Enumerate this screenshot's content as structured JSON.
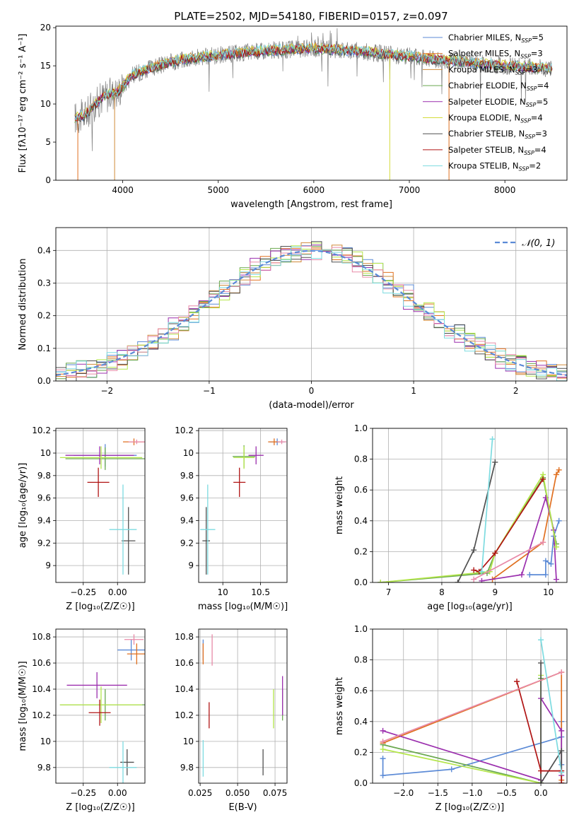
{
  "figure_title": "PLATE=2502, MJD=54180, FIBERID=0157, z=0.097",
  "colors": {
    "chabrier_miles": "#5b8ad6",
    "salpeter_miles": "#e07020",
    "kroupa_miles": "#d08a3a",
    "chabrier_elodie": "#6aa84f",
    "salpeter_elodie": "#9b2fae",
    "kroupa_elodie": "#d4dc3a",
    "chabrier_stelib": "#505050",
    "salpeter_stelib": "#b01414",
    "kroupa_stelib": "#7ddbe0",
    "salmon": "#e88aa8",
    "lime": "#b4e64a",
    "data": "#808080",
    "normal": "#5b8ad6"
  },
  "chart_data": [
    {
      "id": "spectrum",
      "type": "line",
      "title": "PLATE=2502, MJD=54180, FIBERID=0157, z=0.097",
      "xlabel": "wavelength [Angstrom, rest frame]",
      "ylabel": "Flux [fλ10⁻¹⁷ erg cm⁻² s⁻¹ A⁻¹]",
      "xlim": [
        3300,
        8650
      ],
      "ylim": [
        0,
        20.2
      ],
      "xticks": [
        4000,
        5000,
        6000,
        7000,
        8000
      ],
      "yticks": [
        0,
        5,
        10,
        15,
        20
      ],
      "grid": false,
      "legend_position": "top-right",
      "continuum": {
        "x": [
          3500,
          3600,
          3700,
          3800,
          3950,
          4100,
          4300,
          4600,
          5000,
          5500,
          6000,
          6500,
          7000,
          7500,
          8000,
          8500
        ],
        "y": [
          8.2,
          8.5,
          9.8,
          11.0,
          11.6,
          13.8,
          14.7,
          15.8,
          16.4,
          17.0,
          17.3,
          16.9,
          16.2,
          15.6,
          15.0,
          14.6
        ]
      },
      "series": [
        {
          "name": "Chabrier MILES, N_SSP=5",
          "color_key": "chabrier_miles"
        },
        {
          "name": "Salpeter MILES, N_SSP=3",
          "color_key": "salpeter_miles"
        },
        {
          "name": "Kroupa MILES, N_SSP=3",
          "color_key": "kroupa_miles"
        },
        {
          "name": "Chabrier ELODIE, N_SSP=4",
          "color_key": "chabrier_elodie"
        },
        {
          "name": "Salpeter ELODIE, N_SSP=5",
          "color_key": "salpeter_elodie"
        },
        {
          "name": "Kroupa ELODIE, N_SSP=4",
          "color_key": "kroupa_elodie"
        },
        {
          "name": "Chabrier STELIB, N_SSP=3",
          "color_key": "chabrier_stelib"
        },
        {
          "name": "Salpeter STELIB, N_SSP=4",
          "color_key": "salpeter_stelib"
        },
        {
          "name": "Kroupa STELIB, N_SSP=2",
          "color_key": "kroupa_stelib"
        }
      ]
    },
    {
      "id": "residuals",
      "type": "step",
      "xlabel": "(data-model)/error",
      "ylabel": "Normed distribution",
      "xlim": [
        -2.5,
        2.5
      ],
      "ylim": [
        0,
        0.47
      ],
      "xticks": [
        -2,
        -1,
        0,
        1,
        2
      ],
      "yticks": [
        0.0,
        0.1,
        0.2,
        0.3,
        0.4
      ],
      "grid": true,
      "legend_position": "top-right",
      "legend": "𝒩(0, 1)",
      "bin_width": 0.1,
      "series_colors": [
        "chabrier_miles",
        "salpeter_miles",
        "kroupa_miles",
        "chabrier_elodie",
        "salpeter_elodie",
        "lime",
        "chabrier_stelib",
        "salmon",
        "kroupa_stelib"
      ]
    },
    {
      "id": "age_vs_Z",
      "type": "errorbar",
      "xlabel": "Z [log₁₀(Z/Z☉)]",
      "ylabel": "age  [log₁₀(age/yr)]",
      "xlim": [
        -0.45,
        0.2
      ],
      "ylim": [
        8.85,
        10.22
      ],
      "xticks": [
        -0.25,
        0.0
      ],
      "xticklabels": [
        "−0.25",
        "0.00"
      ],
      "yticks": [
        9.0,
        9.2,
        9.4,
        9.6,
        9.8,
        10.0,
        10.2
      ],
      "grid": true,
      "points": [
        {
          "x": -0.09,
          "xerr": 0.23,
          "y": 9.98,
          "yerr": 0.1,
          "c": "chabrier_miles"
        },
        {
          "x": 0.12,
          "xerr": 0.08,
          "y": 10.1,
          "yerr": 0.03,
          "c": "salpeter_miles"
        },
        {
          "x": -0.09,
          "xerr": 0.29,
          "y": 9.95,
          "yerr": 0.1,
          "c": "chabrier_elodie"
        },
        {
          "x": -0.13,
          "xerr": 0.25,
          "y": 9.98,
          "yerr": 0.08,
          "c": "salpeter_elodie"
        },
        {
          "x": -0.12,
          "xerr": 0.3,
          "y": 9.96,
          "yerr": 0.1,
          "c": "lime"
        },
        {
          "x": 0.08,
          "xerr": 0.05,
          "y": 9.22,
          "yerr": 0.3,
          "c": "chabrier_stelib"
        },
        {
          "x": -0.14,
          "xerr": 0.08,
          "y": 9.74,
          "yerr": 0.13,
          "c": "salpeter_stelib"
        },
        {
          "x": 0.14,
          "xerr": 0.06,
          "y": 10.1,
          "yerr": 0.02,
          "c": "salmon"
        },
        {
          "x": 0.04,
          "xerr": 0.1,
          "y": 9.32,
          "yerr": 0.4,
          "c": "kroupa_stelib"
        }
      ]
    },
    {
      "id": "age_vs_mass",
      "type": "errorbar",
      "xlabel": "mass [log₁₀(M/M☉)]",
      "ylabel": "",
      "xlim": [
        9.68,
        10.85
      ],
      "ylim": [
        8.85,
        10.22
      ],
      "xticks": [
        10.0,
        10.5
      ],
      "yticks": [
        9.0,
        9.2,
        9.4,
        9.6,
        9.8,
        10.0,
        10.2
      ],
      "grid": true,
      "points": [
        {
          "x": 10.72,
          "xerr": 0.1,
          "y": 10.1,
          "yerr": 0.03,
          "c": "chabrier_miles"
        },
        {
          "x": 10.68,
          "xerr": 0.08,
          "y": 10.1,
          "yerr": 0.03,
          "c": "salpeter_miles"
        },
        {
          "x": 10.28,
          "xerr": 0.15,
          "y": 9.97,
          "yerr": 0.1,
          "c": "chabrier_elodie"
        },
        {
          "x": 10.44,
          "xerr": 0.1,
          "y": 9.98,
          "yerr": 0.08,
          "c": "salpeter_elodie"
        },
        {
          "x": 10.28,
          "xerr": 0.14,
          "y": 9.96,
          "yerr": 0.1,
          "c": "lime"
        },
        {
          "x": 9.78,
          "xerr": 0.05,
          "y": 9.22,
          "yerr": 0.3,
          "c": "chabrier_stelib"
        },
        {
          "x": 10.22,
          "xerr": 0.08,
          "y": 9.74,
          "yerr": 0.13,
          "c": "salpeter_stelib"
        },
        {
          "x": 10.78,
          "xerr": 0.06,
          "y": 10.1,
          "yerr": 0.02,
          "c": "salmon"
        },
        {
          "x": 9.8,
          "xerr": 0.1,
          "y": 9.32,
          "yerr": 0.4,
          "c": "kroupa_stelib"
        }
      ]
    },
    {
      "id": "weight_vs_age",
      "type": "line",
      "xlabel": "age  [log₁₀(age/yr)]",
      "ylabel": "mass weight",
      "xlim": [
        6.7,
        10.35
      ],
      "ylim": [
        0,
        1.0
      ],
      "xticks": [
        7,
        8,
        9,
        10
      ],
      "yticks": [
        0.0,
        0.2,
        0.4,
        0.6,
        0.8,
        1.0
      ],
      "grid": true,
      "series": [
        {
          "c": "chabrier_miles",
          "x": [
            9.65,
            9.95,
            9.95,
            10.05,
            10.1,
            10.2
          ],
          "y": [
            0.05,
            0.05,
            0.14,
            0.12,
            0.3,
            0.4
          ]
        },
        {
          "c": "salpeter_miles",
          "x": [
            8.95,
            9.9,
            10.15,
            10.2
          ],
          "y": [
            0.02,
            0.26,
            0.7,
            0.73
          ]
        },
        {
          "c": "chabrier_elodie",
          "x": [
            6.85,
            8.85,
            9.0,
            9.9,
            10.15
          ],
          "y": [
            0.0,
            0.06,
            0.19,
            0.68,
            0.25
          ]
        },
        {
          "c": "salpeter_elodie",
          "x": [
            8.75,
            9.5,
            9.95,
            10.1,
            10.15
          ],
          "y": [
            0.01,
            0.05,
            0.55,
            0.34,
            0.02
          ]
        },
        {
          "c": "lime",
          "x": [
            6.85,
            8.9,
            9.0,
            9.9,
            10.15
          ],
          "y": [
            0.0,
            0.07,
            0.19,
            0.7,
            0.23
          ]
        },
        {
          "c": "chabrier_stelib",
          "x": [
            8.3,
            8.6,
            9.0
          ],
          "y": [
            0.0,
            0.21,
            0.78
          ]
        },
        {
          "c": "salpeter_stelib",
          "x": [
            8.6,
            8.7,
            9.0,
            9.9
          ],
          "y": [
            0.08,
            0.07,
            0.19,
            0.67
          ]
        },
        {
          "c": "salmon",
          "x": [
            8.6,
            9.9
          ],
          "y": [
            0.02,
            0.26
          ]
        },
        {
          "c": "kroupa_stelib",
          "x": [
            8.75,
            8.95
          ],
          "y": [
            0.07,
            0.93
          ]
        }
      ]
    },
    {
      "id": "mass_vs_Z",
      "type": "errorbar",
      "xlabel": "Z [log₁₀(Z/Z☉)]",
      "ylabel": "mass [log₁₀(M/M☉)]",
      "xlim": [
        -0.45,
        0.2
      ],
      "ylim": [
        9.68,
        10.86
      ],
      "xticks": [
        -0.25,
        0.0
      ],
      "xticklabels": [
        "−0.25",
        "0.00"
      ],
      "yticks": [
        9.8,
        10.0,
        10.2,
        10.4,
        10.6,
        10.8
      ],
      "grid": true,
      "points": [
        {
          "x": 0.1,
          "xerr": 0.1,
          "y": 10.7,
          "yerr": 0.08,
          "c": "chabrier_miles"
        },
        {
          "x": 0.14,
          "xerr": 0.07,
          "y": 10.67,
          "yerr": 0.08,
          "c": "salpeter_miles"
        },
        {
          "x": -0.09,
          "xerr": 0.33,
          "y": 10.28,
          "yerr": 0.12,
          "c": "chabrier_elodie"
        },
        {
          "x": -0.15,
          "xerr": 0.22,
          "y": 10.43,
          "yerr": 0.1,
          "c": "salpeter_elodie"
        },
        {
          "x": -0.12,
          "xerr": 0.3,
          "y": 10.28,
          "yerr": 0.14,
          "c": "lime"
        },
        {
          "x": 0.07,
          "xerr": 0.05,
          "y": 9.84,
          "yerr": 0.1,
          "c": "chabrier_stelib"
        },
        {
          "x": -0.13,
          "xerr": 0.08,
          "y": 10.22,
          "yerr": 0.1,
          "c": "salpeter_stelib"
        },
        {
          "x": 0.12,
          "xerr": 0.07,
          "y": 10.78,
          "yerr": 0.04,
          "c": "salmon"
        },
        {
          "x": 0.04,
          "xerr": 0.1,
          "y": 9.8,
          "yerr": 0.2,
          "c": "kroupa_stelib"
        }
      ]
    },
    {
      "id": "mass_vs_ebv",
      "type": "errorbar",
      "xlabel": "E(B-V)",
      "ylabel": "",
      "xlim": [
        0.024,
        0.083
      ],
      "ylim": [
        9.68,
        10.86
      ],
      "xticks": [
        0.025,
        0.05,
        0.075
      ],
      "xticklabels": [
        "0.025",
        "0.050",
        "0.075"
      ],
      "yticks": [
        9.8,
        10.0,
        10.2,
        10.4,
        10.6,
        10.8
      ],
      "grid": true,
      "points": [
        {
          "x": 0.027,
          "y": 10.7,
          "yerr": 0.08,
          "c": "chabrier_miles"
        },
        {
          "x": 0.027,
          "y": 10.67,
          "yerr": 0.08,
          "c": "salpeter_miles"
        },
        {
          "x": 0.08,
          "y": 10.28,
          "yerr": 0.12,
          "c": "chabrier_elodie"
        },
        {
          "x": 0.08,
          "y": 10.35,
          "yerr": 0.15,
          "c": "salpeter_elodie"
        },
        {
          "x": 0.074,
          "y": 10.25,
          "yerr": 0.15,
          "c": "lime"
        },
        {
          "x": 0.067,
          "y": 9.84,
          "yerr": 0.1,
          "c": "chabrier_stelib"
        },
        {
          "x": 0.031,
          "y": 10.2,
          "yerr": 0.1,
          "c": "salpeter_stelib"
        },
        {
          "x": 0.033,
          "y": 10.7,
          "yerr": 0.12,
          "c": "salmon"
        },
        {
          "x": 0.027,
          "y": 9.87,
          "yerr": 0.14,
          "c": "kroupa_stelib"
        }
      ]
    },
    {
      "id": "weight_vs_Z",
      "type": "line",
      "xlabel": "Z [log₁₀(Z/Z☉)]",
      "ylabel": "mass weight",
      "xlim": [
        -2.45,
        0.38
      ],
      "ylim": [
        0,
        1.0
      ],
      "xticks": [
        -2.0,
        -1.5,
        -1.0,
        -0.5,
        0.0
      ],
      "xticklabels": [
        "−2.0",
        "−1.5",
        "−1.0",
        "−0.5",
        "0.0"
      ],
      "yticks": [
        0.0,
        0.2,
        0.4,
        0.6,
        0.8,
        1.0
      ],
      "grid": true,
      "series": [
        {
          "c": "chabrier_miles",
          "x": [
            -2.3,
            -2.3,
            -1.3,
            0.3,
            0.3,
            0.3
          ],
          "y": [
            0.16,
            0.05,
            0.09,
            0.3,
            0.4,
            0.12
          ]
        },
        {
          "c": "salpeter_miles",
          "x": [
            -2.3,
            0.3,
            0.3
          ],
          "y": [
            0.26,
            0.72,
            0.02
          ]
        },
        {
          "c": "chabrier_elodie",
          "x": [
            -2.3,
            0.0,
            0.0
          ],
          "y": [
            0.25,
            0.0,
            0.68
          ]
        },
        {
          "c": "salpeter_elodie",
          "x": [
            -2.3,
            0.0,
            0.0,
            0.3,
            0.3
          ],
          "y": [
            0.34,
            0.02,
            0.55,
            0.34,
            0.05
          ]
        },
        {
          "c": "lime",
          "x": [
            -2.3,
            0.0,
            0.0
          ],
          "y": [
            0.22,
            0.0,
            0.7
          ]
        },
        {
          "c": "chabrier_stelib",
          "x": [
            0.0,
            0.0,
            0.3,
            0.3
          ],
          "y": [
            0.78,
            0.0,
            0.21,
            0.0
          ]
        },
        {
          "c": "salpeter_stelib",
          "x": [
            -0.35,
            0.0,
            0.3,
            0.3
          ],
          "y": [
            0.66,
            0.08,
            0.08,
            0.0
          ]
        },
        {
          "c": "salmon",
          "x": [
            -2.3,
            0.3
          ],
          "y": [
            0.27,
            0.72
          ]
        },
        {
          "c": "kroupa_stelib",
          "x": [
            0.0,
            0.3
          ],
          "y": [
            0.93,
            0.07
          ]
        }
      ]
    }
  ]
}
